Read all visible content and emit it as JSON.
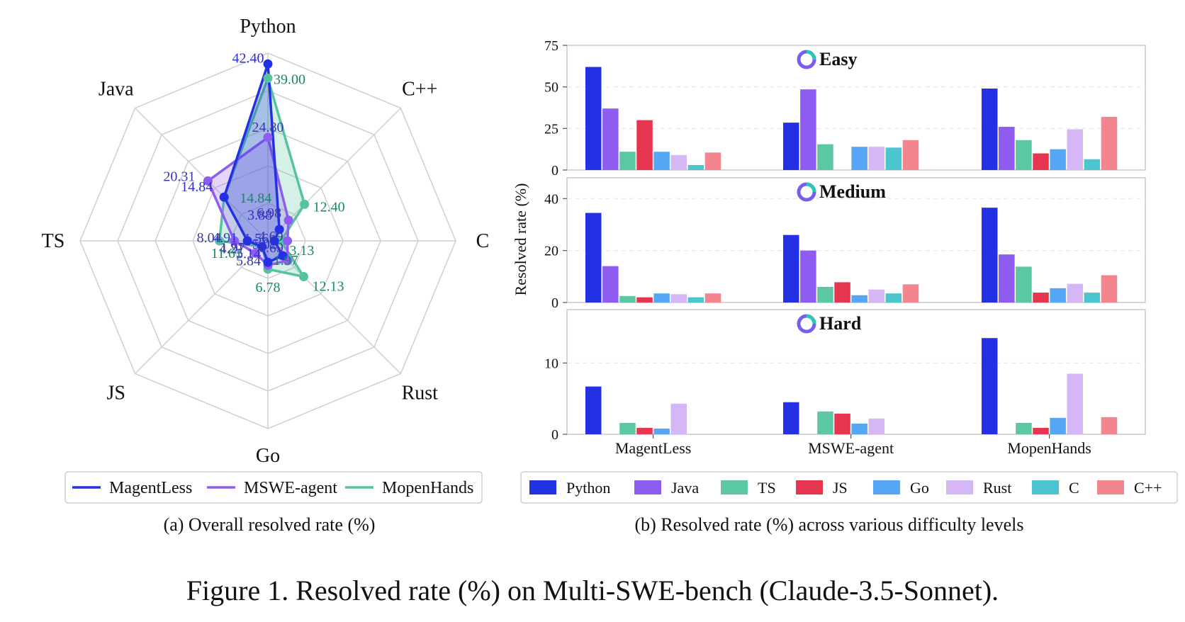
{
  "figure_caption": "Figure 1. Resolved rate (%) on Multi-SWE-bench (Claude-3.5-Sonnet).",
  "colors": {
    "MagentLess": "#2330e3",
    "MSWE-agent": "#8e5cf0",
    "MopenHands": "#55c3a0",
    "Python": "#2330e3",
    "Java": "#8e5cf0",
    "TS": "#5cc7a3",
    "JS": "#e5354f",
    "Go": "#55a7f5",
    "Rust": "#d6b7f5",
    "C": "#4bc6cf",
    "C++": "#f3858f"
  },
  "chart_data": [
    {
      "type": "radar",
      "caption": "(a) Overall resolved rate (%)",
      "axes": [
        "Python",
        "C++",
        "C",
        "Rust",
        "Go",
        "JS",
        "TS",
        "Java"
      ],
      "series": [
        {
          "name": "MagentLess",
          "values": [
            42.4,
            3.88,
            1.56,
            5.02,
            5.14,
            1.97,
            4.91,
            14.84
          ],
          "labels": [
            "42.40",
            "3.88",
            "1.56",
            "5.02",
            "5.14",
            "1.97",
            "4.91",
            "14.84"
          ]
        },
        {
          "name": "MSWE-agent",
          "values": [
            24.8,
            6.98,
            4.69,
            6.69,
            5.84,
            4.21,
            8.04,
            20.31
          ],
          "labels": [
            "24.80",
            "6.98",
            "4.69",
            "6.69",
            "5.84",
            "4.21",
            "8.04",
            "20.31"
          ]
        },
        {
          "name": "MopenHands",
          "values": [
            39.0,
            12.4,
            3.13,
            12.13,
            6.78,
            1.97,
            11.61,
            14.84
          ],
          "labels": [
            "39.00",
            "12.40",
            "3.13",
            "12.13",
            "6.78",
            "1.97",
            "11.61",
            "14.84"
          ]
        }
      ],
      "legend": [
        "MagentLess",
        "MSWE-agent",
        "MopenHands"
      ],
      "legend_position": "bottom",
      "grid": true
    },
    {
      "type": "bar",
      "caption": "(b) Resolved rate (%) across various difficulty levels",
      "ylabel": "Resolved rate (%)",
      "categories": [
        "MagentLess",
        "MSWE-agent",
        "MopenHands"
      ],
      "languages": [
        "Python",
        "Java",
        "TS",
        "JS",
        "Go",
        "Rust",
        "C",
        "C++"
      ],
      "legend_position": "bottom",
      "panels": [
        {
          "title": "Easy",
          "ylim": [
            0,
            75
          ],
          "yticks": [
            0,
            25,
            50,
            75
          ],
          "values": [
            [
              62,
              37,
              11,
              30,
              11,
              9,
              3,
              10.5
            ],
            [
              28.5,
              48.5,
              15.5,
              0,
              14,
              14,
              13.5,
              18
            ],
            [
              49,
              26,
              18,
              10,
              12.5,
              24.5,
              6.5,
              32
            ]
          ]
        },
        {
          "title": "Medium",
          "ylim": [
            0,
            48
          ],
          "yticks": [
            0,
            20,
            40
          ],
          "values": [
            [
              34.5,
              14,
              2.5,
              2,
              3.5,
              3.2,
              2,
              3.5
            ],
            [
              26,
              20,
              6,
              7.8,
              2.8,
              5,
              3.5,
              7
            ],
            [
              36.5,
              18.5,
              13.8,
              3.8,
              5.5,
              7.2,
              3.8,
              10.5
            ]
          ]
        },
        {
          "title": "Hard",
          "ylim": [
            0,
            17.5
          ],
          "yticks": [
            0,
            10
          ],
          "values": [
            [
              6.7,
              0,
              1.6,
              0.9,
              0.8,
              4.3,
              0,
              0
            ],
            [
              4.5,
              0,
              3.2,
              2.9,
              1.5,
              2.2,
              0,
              0
            ],
            [
              13.5,
              0,
              1.6,
              0.9,
              2.3,
              8.5,
              0,
              2.4
            ]
          ]
        }
      ]
    }
  ]
}
